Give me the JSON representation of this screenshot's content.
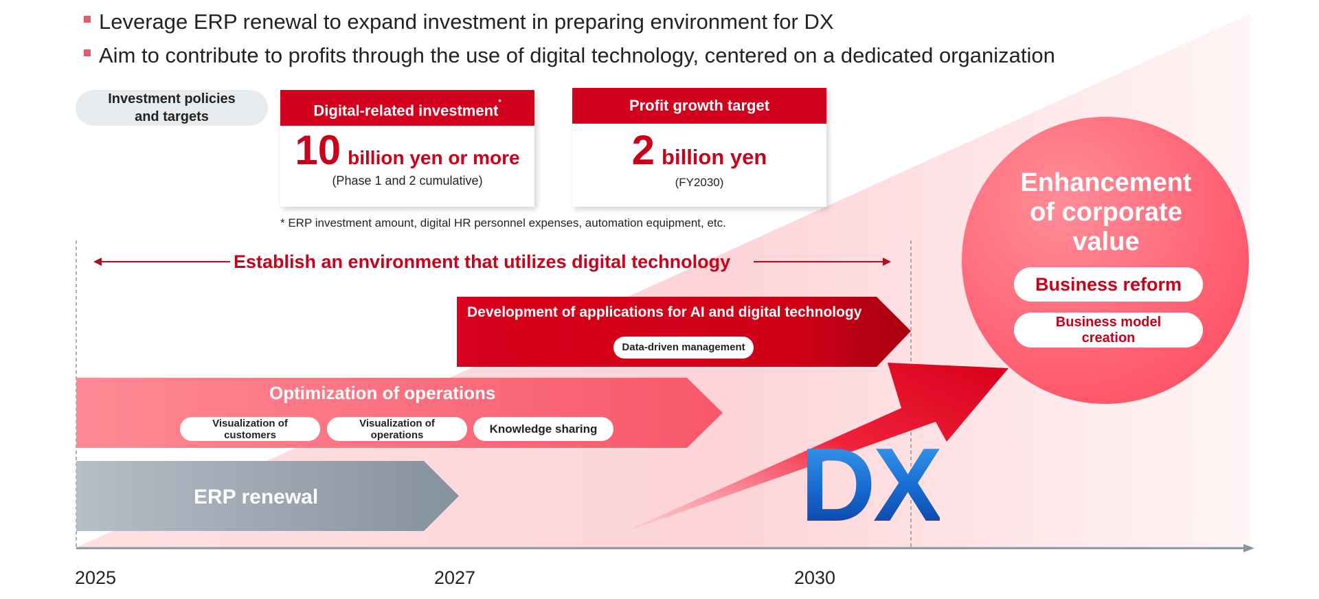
{
  "bullets": [
    "Leverage ERP renewal to expand investment in preparing environment for DX",
    "Aim to contribute to profits through the use of digital technology, centered on a dedicated organization"
  ],
  "policy_pill": {
    "line1": "Investment policies",
    "line2": "and targets"
  },
  "investment_box": {
    "header": "Digital-related investment",
    "header_mark": "*",
    "number": "10",
    "unit": "billion yen or more",
    "note": "(Phase 1 and 2 cumulative)"
  },
  "profit_box": {
    "header": "Profit growth target",
    "number": "2",
    "unit": "billion yen",
    "note": "(FY2030)"
  },
  "footnote": "* ERP investment amount, digital HR personnel expenses, automation equipment, etc.",
  "environment_label": "Establish an environment that utilizes digital technology",
  "ai_bar": {
    "label": "Development of applications for AI and digital technology",
    "pill": "Data-driven management"
  },
  "optimization_bar": {
    "label": "Optimization of operations",
    "pills": [
      {
        "line1": "Visualization of",
        "line2": "customers"
      },
      {
        "line1": "Visualization of",
        "line2": "operations"
      },
      {
        "line1": "Knowledge sharing",
        "line2": ""
      }
    ]
  },
  "erp_bar": {
    "label": "ERP renewal"
  },
  "dx_label": "DX",
  "circle": {
    "title_lines": [
      "Enhancement",
      "of corporate",
      "value"
    ],
    "pill1": "Business reform",
    "pill2_line1": "Business model",
    "pill2_line2": "creation"
  },
  "timeline": {
    "years": [
      "2025",
      "2027",
      "2030"
    ]
  },
  "colors": {
    "accent_red": "#d2001c",
    "text_red": "#c8001a",
    "pink": "#f87480",
    "erp_gray": "#8f9aa6",
    "dx_blue": "#1769cf"
  }
}
